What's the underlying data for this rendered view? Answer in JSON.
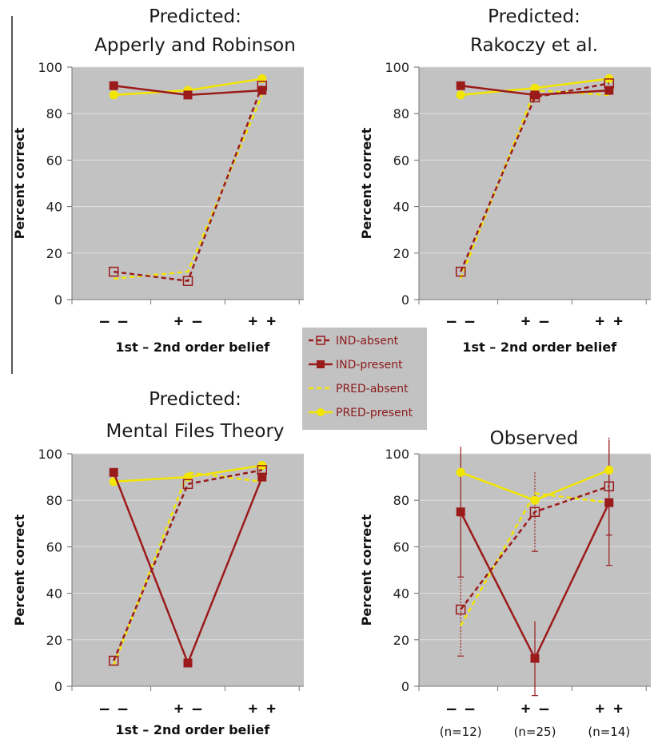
{
  "colors": {
    "ind": "#9b1b1b",
    "pred": "#f2e600",
    "plot_bg": "#c2c2c2",
    "grid": "#e0e0e0"
  },
  "legend": {
    "entries": [
      {
        "name": "IND-absent",
        "key": "ind_absent"
      },
      {
        "name": "IND-present",
        "key": "ind_present"
      },
      {
        "name": "PRED-absent",
        "key": "pred_absent"
      },
      {
        "name": "PRED-present",
        "key": "pred_present"
      }
    ]
  },
  "chart_data": [
    {
      "type": "line",
      "title": [
        "Predicted:",
        "Apperly and Robinson"
      ],
      "ylabel": "Percent correct",
      "xlabel": "1st – 2nd order belief",
      "categories": [
        "– –",
        "+ –",
        "+ +"
      ],
      "ylim": [
        0,
        100
      ],
      "yticks": [
        0,
        20,
        40,
        60,
        80,
        100
      ],
      "grid": true,
      "series": [
        {
          "name": "IND-absent",
          "key": "ind_absent",
          "values": [
            12,
            8,
            92
          ]
        },
        {
          "name": "IND-present",
          "key": "ind_present",
          "values": [
            92,
            88,
            90
          ]
        },
        {
          "name": "PRED-absent",
          "key": "pred_absent",
          "values": [
            9,
            12,
            88
          ]
        },
        {
          "name": "PRED-present",
          "key": "pred_present",
          "values": [
            88,
            90,
            95
          ]
        }
      ]
    },
    {
      "type": "line",
      "title": [
        "Predicted:",
        "Rakoczy et al."
      ],
      "ylabel": "Percent correct",
      "xlabel": "1st – 2nd order belief",
      "categories": [
        "– –",
        "+ –",
        "+ +"
      ],
      "ylim": [
        0,
        100
      ],
      "yticks": [
        0,
        20,
        40,
        60,
        80,
        100
      ],
      "grid": true,
      "series": [
        {
          "name": "IND-absent",
          "key": "ind_absent",
          "values": [
            12,
            87,
            93
          ]
        },
        {
          "name": "IND-present",
          "key": "ind_present",
          "values": [
            92,
            88,
            90
          ]
        },
        {
          "name": "PRED-absent",
          "key": "pred_absent",
          "values": [
            9,
            90,
            88
          ]
        },
        {
          "name": "PRED-present",
          "key": "pred_present",
          "values": [
            88,
            91,
            95
          ]
        }
      ]
    },
    {
      "type": "line",
      "title": [
        "Predicted:",
        "Mental Files Theory"
      ],
      "ylabel": "Percent correct",
      "xlabel": "1st – 2nd order belief",
      "categories": [
        "– –",
        "+ –",
        "+ +"
      ],
      "ylim": [
        0,
        100
      ],
      "yticks": [
        0,
        20,
        40,
        60,
        80,
        100
      ],
      "grid": true,
      "series": [
        {
          "name": "IND-absent",
          "key": "ind_absent",
          "values": [
            11,
            87,
            93
          ]
        },
        {
          "name": "IND-present",
          "key": "ind_present",
          "values": [
            92,
            10,
            90
          ]
        },
        {
          "name": "PRED-absent",
          "key": "pred_absent",
          "values": [
            9,
            92,
            88
          ]
        },
        {
          "name": "PRED-present",
          "key": "pred_present",
          "values": [
            88,
            90,
            95
          ]
        }
      ]
    },
    {
      "type": "line",
      "title": [
        "Observed"
      ],
      "ylabel": "Percent correct",
      "xlabel": "",
      "categories": [
        "– –",
        "+ –",
        "+ +"
      ],
      "category_counts": [
        "(n=12)",
        "(n=25)",
        "(n=14)"
      ],
      "ylim": [
        0,
        100
      ],
      "yticks": [
        0,
        20,
        40,
        60,
        80,
        100
      ],
      "grid": true,
      "series": [
        {
          "name": "IND-absent",
          "key": "ind_absent",
          "values": [
            33,
            75,
            86
          ],
          "errors": [
            20,
            17,
            21
          ]
        },
        {
          "name": "IND-present",
          "key": "ind_present",
          "values": [
            75,
            12,
            79
          ],
          "errors": [
            28,
            16,
            27
          ]
        },
        {
          "name": "PRED-absent",
          "key": "pred_absent",
          "values": [
            26,
            83,
            79
          ]
        },
        {
          "name": "PRED-present",
          "key": "pred_present",
          "values": [
            92,
            80,
            93
          ]
        }
      ]
    }
  ]
}
